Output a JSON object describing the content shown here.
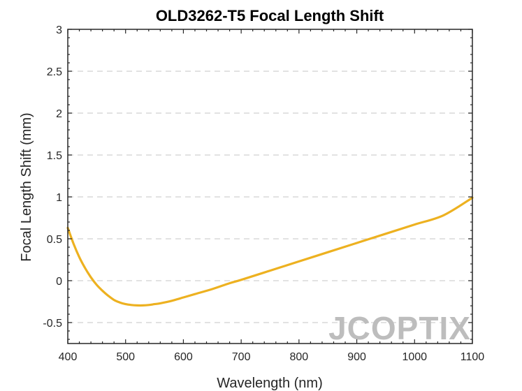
{
  "chart_data": {
    "type": "line",
    "title": "OLD3262-T5 Focal Length Shift",
    "xlabel": "Wavelength (nm)",
    "ylabel": "Focal Length Shift (mm)",
    "xlim": [
      400,
      1100
    ],
    "ylim": [
      -0.75,
      3
    ],
    "xticks": [
      400,
      500,
      600,
      700,
      800,
      900,
      1000,
      1100
    ],
    "yticks": [
      -0.5,
      0,
      0.5,
      1,
      1.5,
      2,
      2.5,
      3
    ],
    "xtick_labels": [
      "400",
      "500",
      "600",
      "700",
      "800",
      "900",
      "1000",
      "1100"
    ],
    "ytick_labels": [
      "-0.5",
      "0",
      "0.5",
      "1",
      "1.5",
      "2",
      "2.5",
      "3"
    ],
    "grid": "y-dashed",
    "series": [
      {
        "color": "#EDB120",
        "x": [
          400,
          410,
          420,
          430,
          440,
          450,
          460,
          470,
          480,
          490,
          500,
          510,
          520,
          530,
          540,
          550,
          560,
          580,
          600,
          620,
          650,
          680,
          700,
          750,
          800,
          850,
          900,
          950,
          1000,
          1050,
          1100
        ],
        "y": [
          0.63,
          0.44,
          0.28,
          0.15,
          0.04,
          -0.05,
          -0.12,
          -0.18,
          -0.23,
          -0.26,
          -0.28,
          -0.29,
          -0.295,
          -0.295,
          -0.29,
          -0.28,
          -0.27,
          -0.24,
          -0.2,
          -0.16,
          -0.1,
          -0.03,
          0.01,
          0.12,
          0.23,
          0.34,
          0.45,
          0.56,
          0.67,
          0.78,
          0.99
        ]
      }
    ]
  },
  "watermark": {
    "text": "JCOPTIX",
    "color": "#bdbdbd"
  }
}
